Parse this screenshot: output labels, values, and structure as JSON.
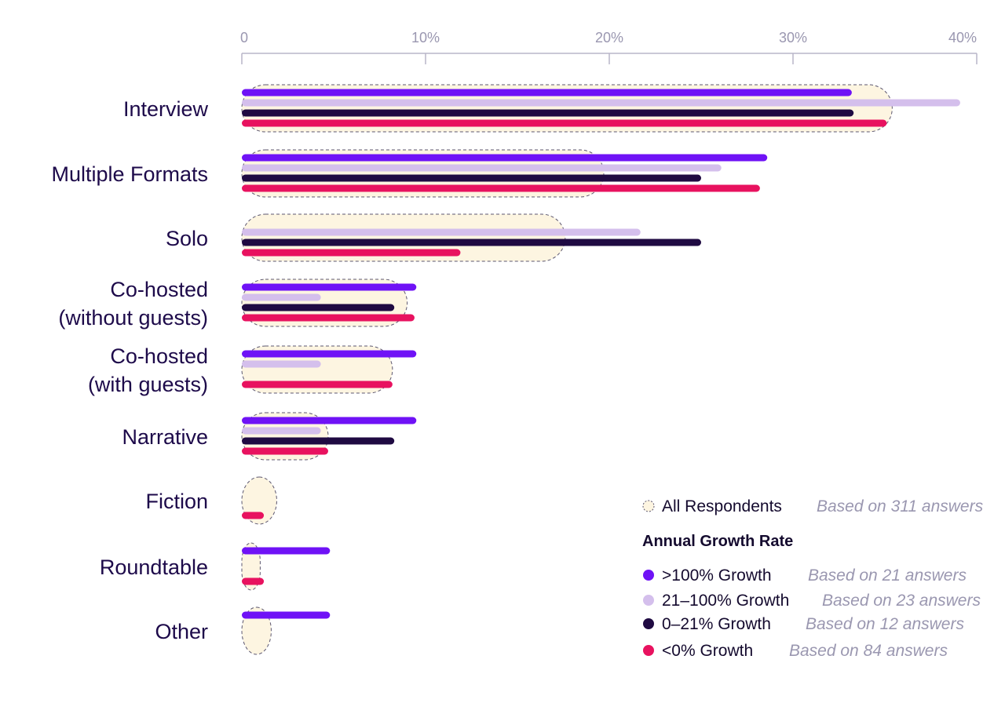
{
  "chart_data": {
    "type": "bar",
    "orientation": "horizontal",
    "xlim": [
      0,
      40
    ],
    "x_ticks": [
      "0",
      "10%",
      "20%",
      "30%",
      "40%"
    ],
    "categories": [
      [
        "Interview"
      ],
      [
        "Multiple Formats"
      ],
      [
        "Solo"
      ],
      [
        "Co-hosted",
        "(without guests)"
      ],
      [
        "Co-hosted",
        "(with guests)"
      ],
      [
        "Narrative"
      ],
      [
        "Fiction"
      ],
      [
        "Roundtable"
      ],
      [
        "Other"
      ]
    ],
    "all_respondents": {
      "name": "All Respondents",
      "note": "Based on 311 answers",
      "color": "#fdf5e1",
      "values": [
        35.4,
        19.7,
        17.6,
        9.0,
        8.2,
        4.7,
        1.9,
        1.0,
        1.6
      ]
    },
    "legend_title": "Annual Growth Rate",
    "series": [
      {
        "name": ">100% Growth",
        "note": "Based on 21 answers",
        "color": "#6f12f6",
        "values": [
          33.2,
          28.6,
          null,
          9.5,
          9.5,
          9.5,
          null,
          4.8,
          4.8
        ]
      },
      {
        "name": "21–100% Growth",
        "note": "Based on 23 answers",
        "color": "#d4bfec",
        "values": [
          39.1,
          26.1,
          21.7,
          4.3,
          4.3,
          4.3,
          null,
          null,
          null
        ]
      },
      {
        "name": "0–21% Growth",
        "note": "Based on 12 answers",
        "color": "#1f0a42",
        "values": [
          33.3,
          25.0,
          25.0,
          8.3,
          null,
          8.3,
          null,
          null,
          null
        ]
      },
      {
        "name": "<0% Growth",
        "note": "Based on 84 answers",
        "color": "#e8125f",
        "values": [
          35.1,
          28.2,
          11.9,
          9.4,
          8.2,
          4.7,
          1.2,
          1.2,
          null
        ]
      }
    ]
  }
}
